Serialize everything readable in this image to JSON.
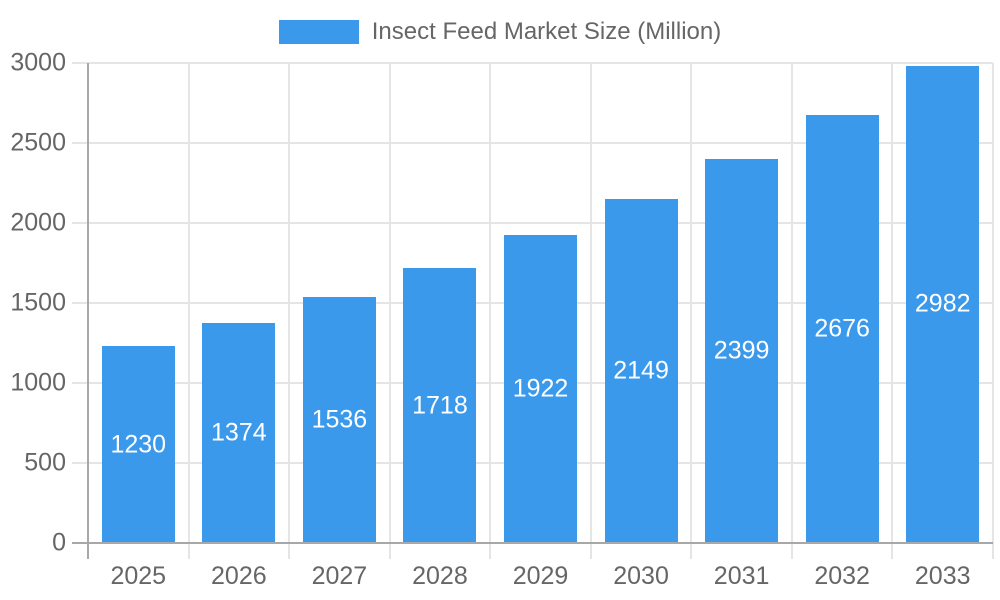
{
  "chart_data": {
    "type": "bar",
    "title": "Insect Feed Market Size (Million)",
    "legend": {
      "position": "top",
      "label": "Insect Feed Market Size (Million)"
    },
    "categories": [
      "2025",
      "2026",
      "2027",
      "2028",
      "2029",
      "2030",
      "2031",
      "2032",
      "2033"
    ],
    "series": [
      {
        "name": "Insect Feed Market Size (Million)",
        "values": [
          1230,
          1374,
          1536,
          1718,
          1922,
          2149,
          2399,
          2676,
          2982
        ]
      }
    ],
    "xlabel": "",
    "ylabel": "",
    "ylim": [
      0,
      3000
    ],
    "yticks": [
      0,
      500,
      1000,
      1500,
      2000,
      2500,
      3000
    ],
    "grid": true,
    "value_labels_position": "inside-center"
  },
  "colors": {
    "bar_fill": "#3B99EC",
    "bar_value_label": "#FFFFFF",
    "axis_text": "#666666",
    "gridline": "#E5E5E5",
    "axis_zero_line": "#A8A8A8",
    "background": "#FFFFFF"
  }
}
